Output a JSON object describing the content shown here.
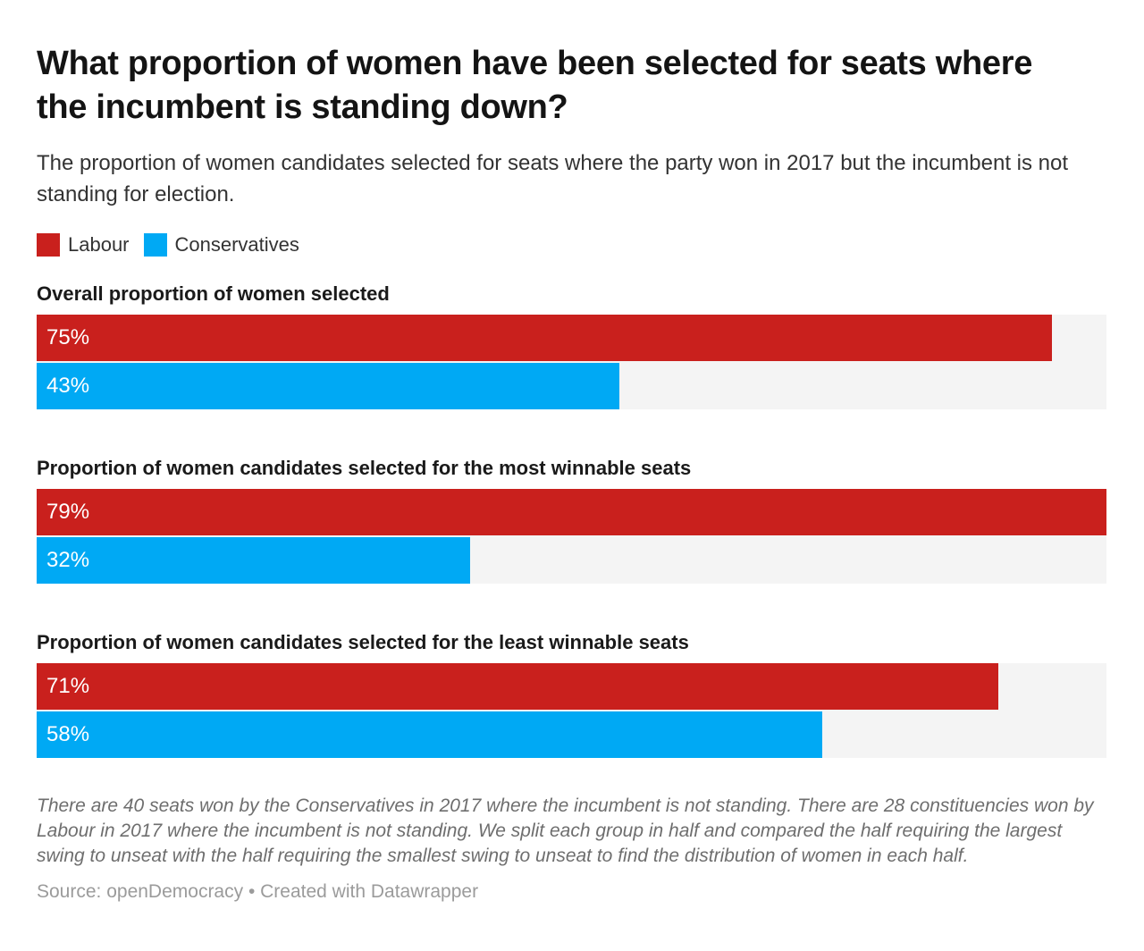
{
  "chart_data": {
    "type": "bar",
    "orientation": "horizontal",
    "title": "What proportion of women have been selected for seats where the incumbent is standing down?",
    "subtitle": "The proportion of women candidates selected for seats where the party won in 2017 but the incumbent is not standing for election.",
    "value_suffix": "%",
    "xlim": [
      0,
      79
    ],
    "axis_visible": false,
    "grid": false,
    "legend_position": "top",
    "track_color": "#f4f4f4",
    "categories": [
      "Overall proportion of women selected",
      "Proportion of women candidates selected for the most winnable seats",
      "Proportion of women candidates selected for the least winnable seats"
    ],
    "series": [
      {
        "name": "Labour",
        "color": "#c9201d",
        "values": [
          75,
          79,
          71
        ]
      },
      {
        "name": "Conservatives",
        "color": "#00a9f4",
        "values": [
          43,
          32,
          58
        ]
      }
    ],
    "note": "There are 40 seats won by the Conservatives in 2017 where the incumbent is not standing. There are 28 constituencies won by Labour in 2017 where the incumbent is not standing. We split each group in half and compared the half requiring the largest swing to unseat with the half requiring the smallest swing to unseat to find the distribution of women in each half.",
    "source": "Source: openDemocracy • Created with Datawrapper"
  }
}
